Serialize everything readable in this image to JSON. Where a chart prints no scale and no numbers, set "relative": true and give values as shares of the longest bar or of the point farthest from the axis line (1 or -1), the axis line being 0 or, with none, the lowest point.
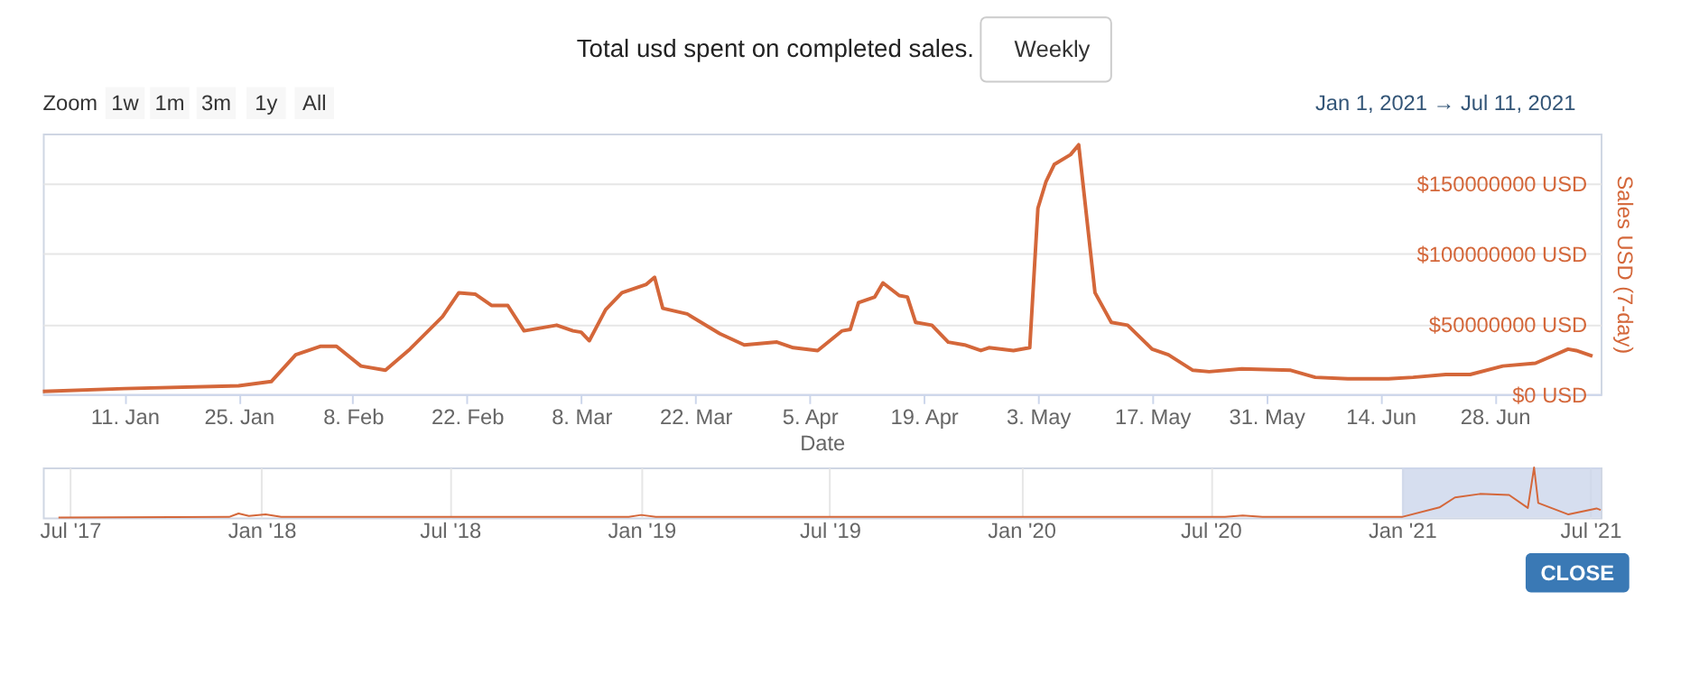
{
  "chart_data": [
    {
      "type": "line",
      "title": "Total usd spent on completed sales.",
      "xlabel": "Date",
      "ylabel": "Sales USD (7-day)",
      "annotations": [
        "Weekly",
        "Zoom",
        "1w",
        "1m",
        "3m",
        "1y",
        "All",
        "Jan 1, 2021 → Jul 11, 2021",
        "CLOSE"
      ],
      "x": [
        "2021-01-01",
        "2021-01-11",
        "2021-01-25",
        "2021-01-29",
        "2021-02-01",
        "2021-02-04",
        "2021-02-06",
        "2021-02-09",
        "2021-02-12",
        "2021-02-15",
        "2021-02-19",
        "2021-02-21",
        "2021-02-23",
        "2021-02-25",
        "2021-02-27",
        "2021-03-01",
        "2021-03-05",
        "2021-03-07",
        "2021-03-08",
        "2021-03-09",
        "2021-03-11",
        "2021-03-13",
        "2021-03-16",
        "2021-03-17",
        "2021-03-18",
        "2021-03-21",
        "2021-03-25",
        "2021-03-28",
        "2021-04-01",
        "2021-04-03",
        "2021-04-06",
        "2021-04-09",
        "2021-04-10",
        "2021-04-11",
        "2021-04-13",
        "2021-04-14",
        "2021-04-16",
        "2021-04-17",
        "2021-04-18",
        "2021-04-20",
        "2021-04-22",
        "2021-04-24",
        "2021-04-26",
        "2021-04-27",
        "2021-04-30",
        "2021-05-02",
        "2021-05-03",
        "2021-05-04",
        "2021-05-05",
        "2021-05-07",
        "2021-05-08",
        "2021-05-10",
        "2021-05-12",
        "2021-05-14",
        "2021-05-17",
        "2021-05-19",
        "2021-05-22",
        "2021-05-24",
        "2021-05-28",
        "2021-06-03",
        "2021-06-06",
        "2021-06-10",
        "2021-06-15",
        "2021-06-18",
        "2021-06-22",
        "2021-06-25",
        "2021-06-29",
        "2021-07-03",
        "2021-07-05",
        "2021-07-07",
        "2021-07-08",
        "2021-07-10"
      ],
      "series": [
        {
          "color": "#d4673a",
          "values": [
            2000000,
            4000000,
            6000000,
            9000000,
            28000000,
            34000000,
            34000000,
            20000000,
            17000000,
            32000000,
            55000000,
            72000000,
            71000000,
            63000000,
            63000000,
            45000000,
            49000000,
            45000000,
            44000000,
            38000000,
            60000000,
            72000000,
            78000000,
            83000000,
            61000000,
            57000000,
            43000000,
            35000000,
            37000000,
            33000000,
            31000000,
            45000000,
            46000000,
            65000000,
            69000000,
            79000000,
            70000000,
            69000000,
            51000000,
            49000000,
            37000000,
            35000000,
            31000000,
            33000000,
            31000000,
            33000000,
            132000000,
            151000000,
            163000000,
            170000000,
            177000000,
            72000000,
            51000000,
            49000000,
            32000000,
            28000000,
            17000000,
            16000000,
            18000000,
            17000000,
            12000000,
            11000000,
            11000000,
            12000000,
            14000000,
            14000000,
            20000000,
            22000000,
            27000000,
            32000000,
            31000000,
            27000000
          ]
        }
      ],
      "xlim": [
        "2021-01-01",
        "2021-07-11"
      ],
      "xticks": [
        {
          "value": "2021-01-11",
          "label": "11. Jan"
        },
        {
          "value": "2021-01-25",
          "label": "25. Jan"
        },
        {
          "value": "2021-02-08",
          "label": "8. Feb"
        },
        {
          "value": "2021-02-22",
          "label": "22. Feb"
        },
        {
          "value": "2021-03-08",
          "label": "8. Mar"
        },
        {
          "value": "2021-03-22",
          "label": "22. Mar"
        },
        {
          "value": "2021-04-05",
          "label": "5. Apr"
        },
        {
          "value": "2021-04-19",
          "label": "19. Apr"
        },
        {
          "value": "2021-05-03",
          "label": "3. May"
        },
        {
          "value": "2021-05-17",
          "label": "17. May"
        },
        {
          "value": "2021-05-31",
          "label": "31. May"
        },
        {
          "value": "2021-06-14",
          "label": "14. Jun"
        },
        {
          "value": "2021-06-28",
          "label": "28. Jun"
        }
      ],
      "ylim": [
        0,
        185000000
      ],
      "yticks": [
        {
          "value": 0,
          "label": "$0 USD"
        },
        {
          "value": 50000000,
          "label": "$50000000 USD"
        },
        {
          "value": 100000000,
          "label": "$100000000 USD"
        },
        {
          "value": 150000000,
          "label": "$150000000 USD"
        }
      ],
      "grid": "y"
    },
    {
      "type": "line",
      "relative": true,
      "x": [
        "2017-06-20",
        "2017-12-01",
        "2017-12-10",
        "2017-12-20",
        "2018-01-05",
        "2018-01-20",
        "2018-12-20",
        "2019-01-01",
        "2019-01-15",
        "2020-07-15",
        "2020-08-01",
        "2020-08-20",
        "2021-01-01",
        "2021-02-06",
        "2021-02-21",
        "2021-03-17",
        "2021-04-14",
        "2021-05-02",
        "2021-05-08",
        "2021-05-12",
        "2021-06-10",
        "2021-07-07",
        "2021-07-11"
      ],
      "series": [
        {
          "color": "#d4673a",
          "values": [
            0,
            0.01,
            0.08,
            0.03,
            0.06,
            0.01,
            0.01,
            0.05,
            0.01,
            0.01,
            0.04,
            0.01,
            0.01,
            0.2,
            0.4,
            0.47,
            0.45,
            0.19,
            1,
            0.29,
            0.06,
            0.18,
            0.15
          ]
        }
      ],
      "xlim": [
        "2017-06-05",
        "2021-07-11"
      ],
      "xticks": [
        {
          "value": "2017-07-01",
          "label": "Jul '17"
        },
        {
          "value": "2018-01-01",
          "label": "Jan '18"
        },
        {
          "value": "2018-07-01",
          "label": "Jul '18"
        },
        {
          "value": "2019-01-01",
          "label": "Jan '19"
        },
        {
          "value": "2019-07-01",
          "label": "Jul '19"
        },
        {
          "value": "2020-01-01",
          "label": "Jan '20"
        },
        {
          "value": "2020-07-01",
          "label": "Jul '20"
        },
        {
          "value": "2021-01-01",
          "label": "Jan '21"
        },
        {
          "value": "2021-07-01",
          "label": "Jul '21"
        }
      ],
      "bands": [
        {
          "axis": "x",
          "from": "2021-01-01",
          "to": "2021-07-11",
          "color": "#ccd6eb"
        }
      ],
      "grid": "x"
    }
  ]
}
